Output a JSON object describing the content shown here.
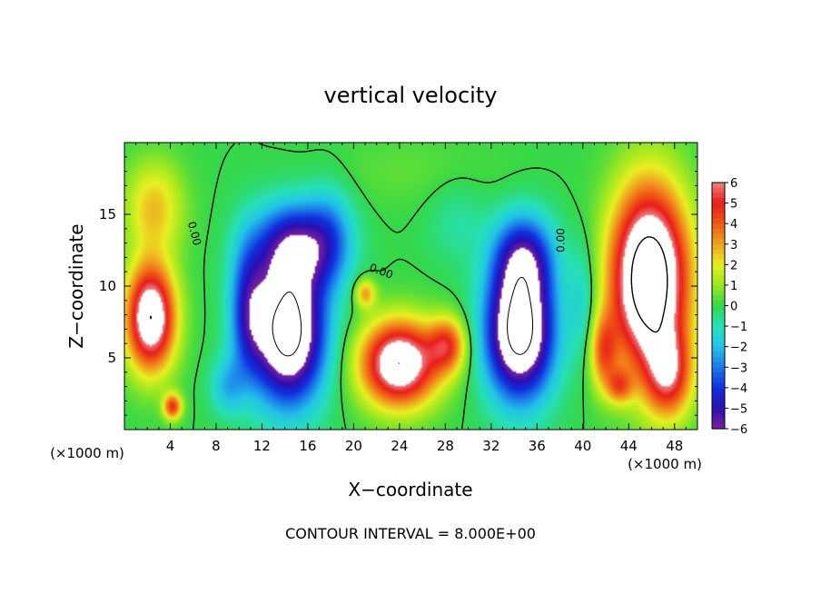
{
  "chart_data": {
    "type": "heatmap",
    "title": "vertical velocity",
    "xlabel": "X−coordinate",
    "ylabel": "Z−coordinate",
    "x_unit_left": "(×1000 m)",
    "x_unit_right": "(×1000 m)",
    "footer": "CONTOUR INTERVAL = 8.000E+00",
    "xlim": [
      0,
      50
    ],
    "ylim": [
      0,
      20
    ],
    "x_ticks": [
      4,
      8,
      12,
      16,
      20,
      24,
      28,
      32,
      36,
      40,
      44,
      48
    ],
    "y_ticks": [
      5,
      10,
      15
    ],
    "colorbar": {
      "range": [
        -6,
        6
      ],
      "ticks": [
        6,
        5,
        4,
        3,
        2,
        1,
        0,
        -1,
        -2,
        -3,
        -4,
        -5,
        -6
      ],
      "tick_labels": [
        "6",
        "5",
        "4",
        "3",
        "2",
        "1",
        "0",
        "−1",
        "−2",
        "−3",
        "−4",
        "−5",
        "−6"
      ],
      "colors": [
        "#7a1fa2",
        "#2a0fb0",
        "#1030e0",
        "#1c7ae8",
        "#22c4e8",
        "#26e0b8",
        "#34d848",
        "#9ae820",
        "#e8f020",
        "#f0a020",
        "#f05a14",
        "#e81c1c",
        "#f08080"
      ]
    },
    "contour_labels": [
      {
        "x": 5.8,
        "z": 13.6,
        "text": "0.00"
      },
      {
        "x": 22.3,
        "z": 10.8,
        "text": "0.00"
      },
      {
        "x": 38.4,
        "z": 13.2,
        "text": "0.00"
      }
    ],
    "features": [
      {
        "x": 2.3,
        "z": 7.8,
        "sx": 2.1,
        "sz": 3.6,
        "value": 8.0
      },
      {
        "x": 2.6,
        "z": 15.5,
        "sx": 2.5,
        "sz": 3.2,
        "value": 2.6
      },
      {
        "x": 4.2,
        "z": 1.6,
        "sx": 0.8,
        "sz": 0.9,
        "value": 4.5
      },
      {
        "x": 14.3,
        "z": 6.8,
        "sx": 3.1,
        "sz": 4.8,
        "value": -9.0
      },
      {
        "x": 15.0,
        "z": 12.8,
        "sx": 3.6,
        "sz": 3.0,
        "value": -5.0
      },
      {
        "x": 10.8,
        "z": 8.5,
        "sx": 1.6,
        "sz": 4.5,
        "value": -3.5
      },
      {
        "x": 24.0,
        "z": 4.6,
        "sx": 3.3,
        "sz": 2.9,
        "value": 8.0
      },
      {
        "x": 28.2,
        "z": 5.9,
        "sx": 1.6,
        "sz": 1.9,
        "value": 4.0
      },
      {
        "x": 21.0,
        "z": 9.5,
        "sx": 0.9,
        "sz": 1.0,
        "value": 3.0
      },
      {
        "x": 34.5,
        "z": 6.8,
        "sx": 2.9,
        "sz": 4.5,
        "value": -9.0
      },
      {
        "x": 34.8,
        "z": 12.0,
        "sx": 2.6,
        "sz": 3.0,
        "value": -4.5
      },
      {
        "x": 45.8,
        "z": 10.5,
        "sx": 3.3,
        "sz": 6.2,
        "value": 10.0
      },
      {
        "x": 47.5,
        "z": 3.8,
        "sx": 2.0,
        "sz": 3.0,
        "value": 4.5
      },
      {
        "x": 41.8,
        "z": 5.4,
        "sx": 1.2,
        "sz": 2.6,
        "value": 3.5
      },
      {
        "x": 43.2,
        "z": 3.0,
        "sx": 1.1,
        "sz": 1.2,
        "value": 3.0
      },
      {
        "x": 18.0,
        "z": 13.5,
        "sx": 2.0,
        "sz": 3.5,
        "value": -1.8
      },
      {
        "x": 29.0,
        "z": 14.5,
        "sx": 2.5,
        "sz": 3.0,
        "value": -0.8
      },
      {
        "x": 40.0,
        "z": 9.0,
        "sx": 1.2,
        "sz": 4.0,
        "value": -1.5
      },
      {
        "x": 9.0,
        "z": 3.0,
        "sx": 1.5,
        "sz": 2.0,
        "value": -2.0
      },
      {
        "x": 25.0,
        "z": 18.0,
        "sx": 8.0,
        "sz": 2.5,
        "value": 0.4
      }
    ]
  }
}
